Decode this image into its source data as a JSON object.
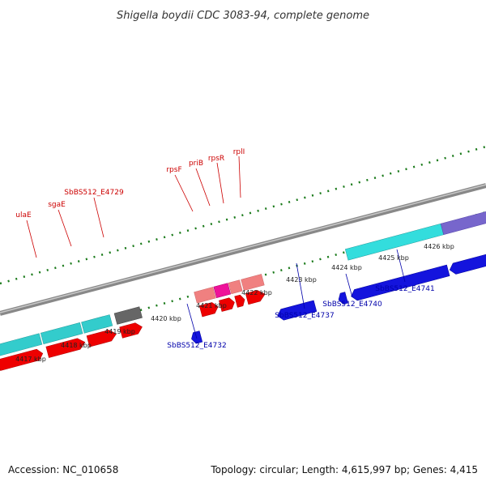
{
  "title": "Shigella boydii CDC 3083-94, complete genome",
  "footer": {
    "accession": "Accession: NC_010658",
    "summary": "Topology: circular; Length: 4,615,997 bp; Genes: 4,415"
  },
  "ticks": [
    "4417 kbp",
    "4418 kbp",
    "4419 kbp",
    "4420 kbp",
    "4421 kbp",
    "4422 kbp",
    "4423 kbp",
    "4424 kbp",
    "4425 kbp",
    "4426 kbp"
  ],
  "top_labels": [
    "ulaE",
    "sgaE",
    "SbBS512_E4729",
    "rpsF",
    "priB",
    "rpsR",
    "rplI"
  ],
  "bottom_labels": [
    "SbBS512_E4732",
    "SbBS512_E4737",
    "SbBS512_E4740",
    "SbBS512_E4741"
  ],
  "colors": {
    "forward_gene": "#ee0000",
    "reverse_gene": "#1414dd",
    "cyan_track": "#33cccc",
    "pink_track": "#f08080",
    "magenta_track": "#ee1199",
    "gray_track": "#666666",
    "purple_track": "#7766cc",
    "tick": "#1a7a1a",
    "backbone": "#888888"
  }
}
